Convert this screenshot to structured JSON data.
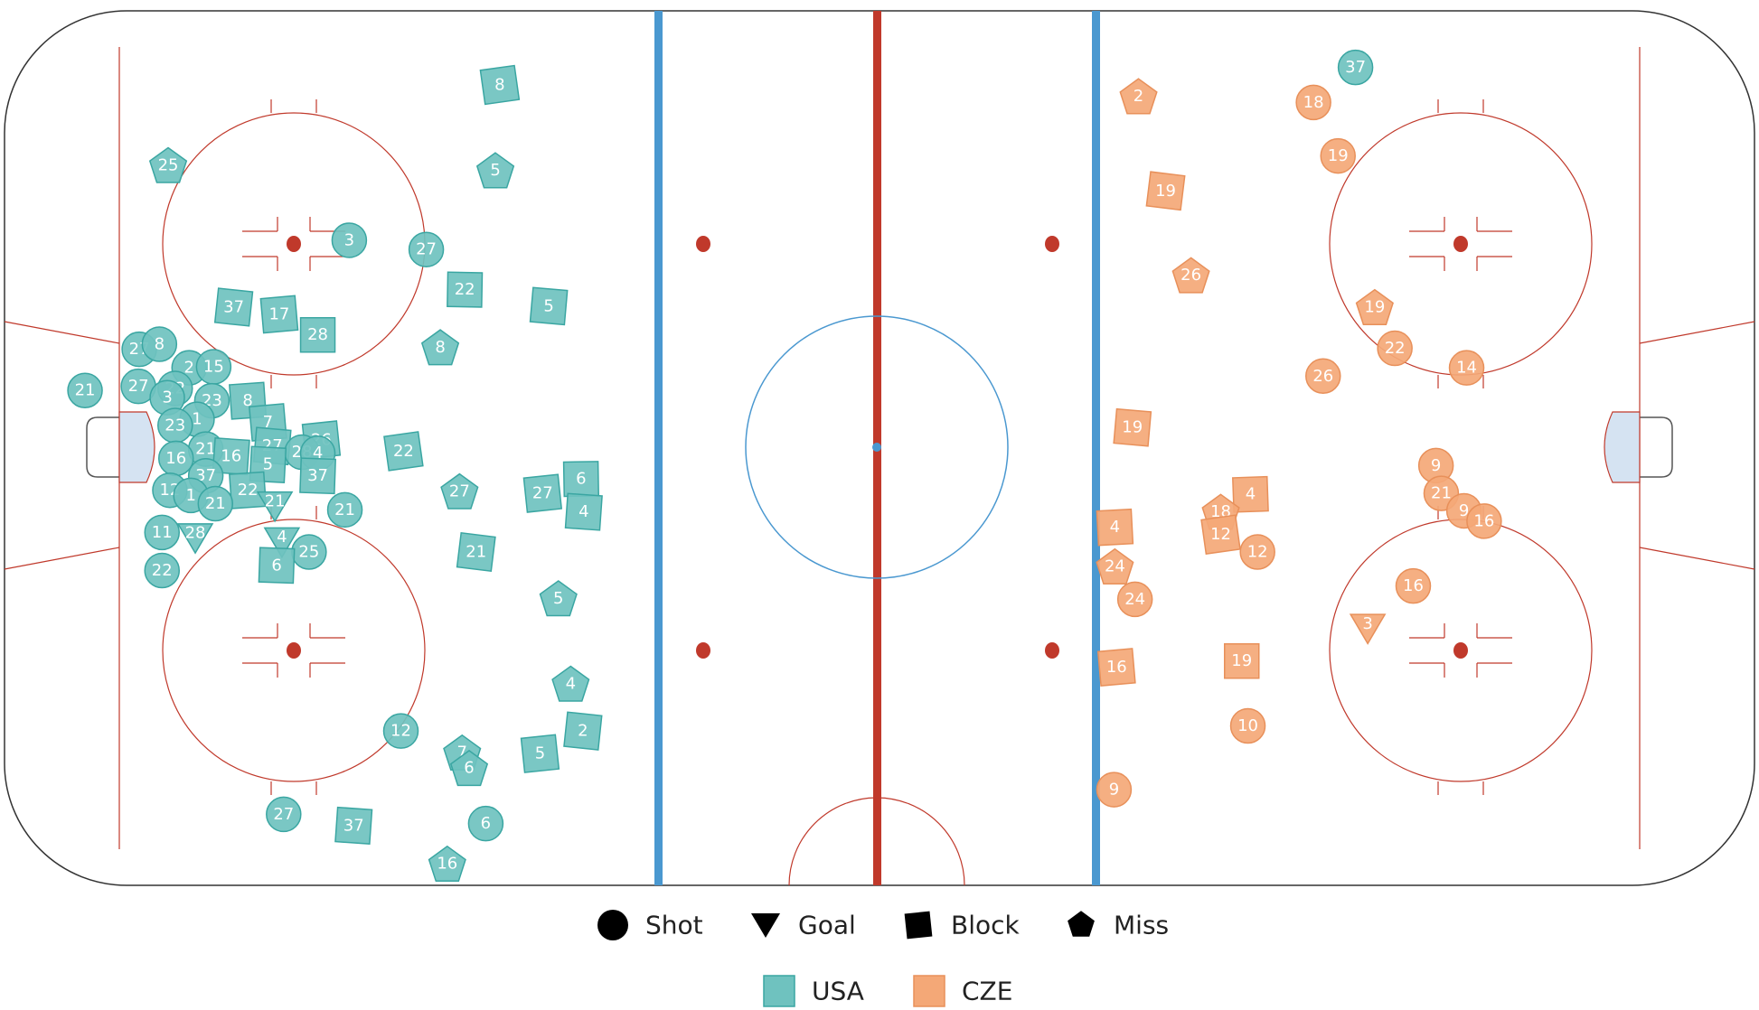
{
  "colors": {
    "USA": "#6fc2bf",
    "CZE": "#f4a877",
    "USA_stroke": "#3aa6a2",
    "CZE_stroke": "#e8905a",
    "red_line": "#c0392b",
    "blue_line": "#4a98d0",
    "center_circle": "#4a98d0",
    "faceoff": "#c0392b",
    "crease": "#d5e3f2"
  },
  "legend": {
    "types": [
      {
        "label": "Shot",
        "shape": "circle"
      },
      {
        "label": "Goal",
        "shape": "triangle"
      },
      {
        "label": "Block",
        "shape": "square"
      },
      {
        "label": "Miss",
        "shape": "pentagon"
      }
    ],
    "teams": [
      {
        "label": "USA",
        "color": "#6fc2bf"
      },
      {
        "label": "CZE",
        "color": "#f4a877"
      }
    ]
  },
  "chart_data": {
    "type": "scatter",
    "x_range": [
      -100,
      100
    ],
    "y_range": [
      -42.5,
      42.5
    ],
    "events": [
      {
        "team": "USA",
        "type": "block",
        "num": "8",
        "x": -43.4,
        "y": 35.3
      },
      {
        "team": "USA",
        "type": "miss",
        "num": "25",
        "x": -81.3,
        "y": 27.5
      },
      {
        "team": "USA",
        "type": "miss",
        "num": "5",
        "x": -43.9,
        "y": 27.0
      },
      {
        "team": "USA",
        "type": "shot",
        "num": "3",
        "x": -60.6,
        "y": 20.2
      },
      {
        "team": "USA",
        "type": "shot",
        "num": "27",
        "x": -51.8,
        "y": 19.3
      },
      {
        "team": "USA",
        "type": "block",
        "num": "22",
        "x": -47.4,
        "y": 15.4
      },
      {
        "team": "USA",
        "type": "block",
        "num": "37",
        "x": -73.8,
        "y": 13.7
      },
      {
        "team": "USA",
        "type": "block",
        "num": "17",
        "x": -68.6,
        "y": 13.0
      },
      {
        "team": "USA",
        "type": "block",
        "num": "28",
        "x": -64.2,
        "y": 11.0
      },
      {
        "team": "USA",
        "type": "block",
        "num": "5",
        "x": -37.8,
        "y": 13.8
      },
      {
        "team": "USA",
        "type": "miss",
        "num": "8",
        "x": -50.2,
        "y": 9.8
      },
      {
        "team": "USA",
        "type": "shot",
        "num": "27",
        "x": -84.6,
        "y": 9.6
      },
      {
        "team": "USA",
        "type": "shot",
        "num": "8",
        "x": -82.3,
        "y": 10.1
      },
      {
        "team": "USA",
        "type": "shot",
        "num": "21",
        "x": -90.8,
        "y": 5.6
      },
      {
        "team": "USA",
        "type": "shot",
        "num": "27",
        "x": -84.7,
        "y": 6.0
      },
      {
        "team": "USA",
        "type": "shot",
        "num": "2",
        "x": -78.9,
        "y": 7.8
      },
      {
        "team": "USA",
        "type": "shot",
        "num": "15",
        "x": -76.1,
        "y": 7.9
      },
      {
        "team": "USA",
        "type": "shot",
        "num": "22",
        "x": -80.5,
        "y": 5.8
      },
      {
        "team": "USA",
        "type": "shot",
        "num": "3",
        "x": -81.4,
        "y": 4.9
      },
      {
        "team": "USA",
        "type": "shot",
        "num": "23",
        "x": -76.3,
        "y": 4.6
      },
      {
        "team": "USA",
        "type": "block",
        "num": "8",
        "x": -72.2,
        "y": 4.6
      },
      {
        "team": "USA",
        "type": "shot",
        "num": "1",
        "x": -78.0,
        "y": 2.8
      },
      {
        "team": "USA",
        "type": "shot",
        "num": "23",
        "x": -80.5,
        "y": 2.2
      },
      {
        "team": "USA",
        "type": "block",
        "num": "7",
        "x": -69.9,
        "y": 2.5
      },
      {
        "team": "USA",
        "type": "shot",
        "num": "21",
        "x": -77.0,
        "y": -0.1
      },
      {
        "team": "USA",
        "type": "block",
        "num": "27",
        "x": -69.4,
        "y": 0.2
      },
      {
        "team": "USA",
        "type": "block",
        "num": "26",
        "x": -63.8,
        "y": 0.8
      },
      {
        "team": "USA",
        "type": "shot",
        "num": "16",
        "x": -80.4,
        "y": -1.0
      },
      {
        "team": "USA",
        "type": "block",
        "num": "16",
        "x": -74.1,
        "y": -0.8
      },
      {
        "team": "USA",
        "type": "shot",
        "num": "28",
        "x": -66.0,
        "y": -0.4
      },
      {
        "team": "USA",
        "type": "shot",
        "num": "4",
        "x": -64.2,
        "y": -0.5
      },
      {
        "team": "USA",
        "type": "block",
        "num": "5",
        "x": -69.9,
        "y": -1.6
      },
      {
        "team": "USA",
        "type": "block",
        "num": "22",
        "x": -54.4,
        "y": -0.3
      },
      {
        "team": "USA",
        "type": "shot",
        "num": "37",
        "x": -77.0,
        "y": -2.7
      },
      {
        "team": "USA",
        "type": "block",
        "num": "37",
        "x": -64.2,
        "y": -2.7
      },
      {
        "team": "USA",
        "type": "shot",
        "num": "12",
        "x": -81.1,
        "y": -4.1
      },
      {
        "team": "USA",
        "type": "block",
        "num": "22",
        "x": -72.2,
        "y": -4.1
      },
      {
        "team": "USA",
        "type": "shot",
        "num": "1",
        "x": -78.7,
        "y": -4.6
      },
      {
        "team": "USA",
        "type": "shot",
        "num": "21",
        "x": -75.9,
        "y": -5.4
      },
      {
        "team": "USA",
        "type": "goal",
        "num": "21",
        "x": -69.1,
        "y": -5.6
      },
      {
        "team": "USA",
        "type": "shot",
        "num": "21",
        "x": -61.1,
        "y": -6.0
      },
      {
        "team": "USA",
        "type": "miss",
        "num": "27",
        "x": -48.0,
        "y": -4.2
      },
      {
        "team": "USA",
        "type": "block",
        "num": "27",
        "x": -38.5,
        "y": -4.4
      },
      {
        "team": "USA",
        "type": "block",
        "num": "6",
        "x": -34.1,
        "y": -3.0
      },
      {
        "team": "USA",
        "type": "block",
        "num": "4",
        "x": -33.8,
        "y": -6.2
      },
      {
        "team": "USA",
        "type": "shot",
        "num": "11",
        "x": -82.0,
        "y": -8.2
      },
      {
        "team": "USA",
        "type": "goal",
        "num": "28",
        "x": -78.2,
        "y": -8.7
      },
      {
        "team": "USA",
        "type": "shot",
        "num": "22",
        "x": -82.0,
        "y": -11.9
      },
      {
        "team": "USA",
        "type": "goal",
        "num": "4",
        "x": -68.3,
        "y": -9.1
      },
      {
        "team": "USA",
        "type": "shot",
        "num": "25",
        "x": -65.2,
        "y": -10.1
      },
      {
        "team": "USA",
        "type": "block",
        "num": "6",
        "x": -68.9,
        "y": -11.4
      },
      {
        "team": "USA",
        "type": "block",
        "num": "21",
        "x": -46.1,
        "y": -10.1
      },
      {
        "team": "USA",
        "type": "miss",
        "num": "5",
        "x": -36.7,
        "y": -14.6
      },
      {
        "team": "USA",
        "type": "miss",
        "num": "4",
        "x": -35.3,
        "y": -22.9
      },
      {
        "team": "USA",
        "type": "block",
        "num": "2",
        "x": -33.9,
        "y": -27.5
      },
      {
        "team": "USA",
        "type": "shot",
        "num": "12",
        "x": -54.7,
        "y": -27.5
      },
      {
        "team": "USA",
        "type": "miss",
        "num": "7",
        "x": -47.7,
        "y": -29.6
      },
      {
        "team": "USA",
        "type": "miss",
        "num": "6",
        "x": -46.9,
        "y": -31.1
      },
      {
        "team": "USA",
        "type": "block",
        "num": "5",
        "x": -38.8,
        "y": -29.7
      },
      {
        "team": "USA",
        "type": "shot",
        "num": "27",
        "x": -68.1,
        "y": -35.6
      },
      {
        "team": "USA",
        "type": "block",
        "num": "37",
        "x": -60.1,
        "y": -36.7
      },
      {
        "team": "USA",
        "type": "shot",
        "num": "6",
        "x": -45.0,
        "y": -36.5
      },
      {
        "team": "USA",
        "type": "miss",
        "num": "16",
        "x": -49.4,
        "y": -40.4
      },
      {
        "team": "USA",
        "type": "shot",
        "num": "37",
        "x": 54.4,
        "y": 37.0
      },
      {
        "team": "CZE",
        "type": "miss",
        "num": "2",
        "x": 29.6,
        "y": 34.2
      },
      {
        "team": "CZE",
        "type": "shot",
        "num": "18",
        "x": 49.6,
        "y": 33.6
      },
      {
        "team": "CZE",
        "type": "shot",
        "num": "19",
        "x": 52.4,
        "y": 28.4
      },
      {
        "team": "CZE",
        "type": "block",
        "num": "19",
        "x": 32.7,
        "y": 25.0
      },
      {
        "team": "CZE",
        "type": "miss",
        "num": "26",
        "x": 35.6,
        "y": 16.8
      },
      {
        "team": "CZE",
        "type": "miss",
        "num": "19",
        "x": 56.6,
        "y": 13.7
      },
      {
        "team": "CZE",
        "type": "shot",
        "num": "22",
        "x": 58.9,
        "y": 9.7
      },
      {
        "team": "CZE",
        "type": "shot",
        "num": "26",
        "x": 50.7,
        "y": 7.0
      },
      {
        "team": "CZE",
        "type": "shot",
        "num": "14",
        "x": 67.1,
        "y": 7.8
      },
      {
        "team": "CZE",
        "type": "block",
        "num": "19",
        "x": 28.9,
        "y": 2.0
      },
      {
        "team": "CZE",
        "type": "shot",
        "num": "9",
        "x": 63.6,
        "y": -1.7
      },
      {
        "team": "CZE",
        "type": "shot",
        "num": "21",
        "x": 64.2,
        "y": -4.4
      },
      {
        "team": "CZE",
        "type": "shot",
        "num": "9",
        "x": 66.8,
        "y": -6.1
      },
      {
        "team": "CZE",
        "type": "shot",
        "num": "16",
        "x": 69.1,
        "y": -7.1
      },
      {
        "team": "CZE",
        "type": "block",
        "num": "4",
        "x": 42.4,
        "y": -4.5
      },
      {
        "team": "CZE",
        "type": "miss",
        "num": "18",
        "x": 39.0,
        "y": -6.2
      },
      {
        "team": "CZE",
        "type": "block",
        "num": "12",
        "x": 39.0,
        "y": -8.4
      },
      {
        "team": "CZE",
        "type": "block",
        "num": "4",
        "x": 26.9,
        "y": -7.7
      },
      {
        "team": "CZE",
        "type": "shot",
        "num": "12",
        "x": 43.2,
        "y": -10.1
      },
      {
        "team": "CZE",
        "type": "miss",
        "num": "24",
        "x": 26.9,
        "y": -11.5
      },
      {
        "team": "CZE",
        "type": "shot",
        "num": "24",
        "x": 29.2,
        "y": -14.7
      },
      {
        "team": "CZE",
        "type": "shot",
        "num": "16",
        "x": 61.0,
        "y": -13.4
      },
      {
        "team": "CZE",
        "type": "goal",
        "num": "3",
        "x": 55.8,
        "y": -17.5
      },
      {
        "team": "CZE",
        "type": "block",
        "num": "16",
        "x": 27.1,
        "y": -21.3
      },
      {
        "team": "CZE",
        "type": "block",
        "num": "19",
        "x": 41.4,
        "y": -20.7
      },
      {
        "team": "CZE",
        "type": "shot",
        "num": "10",
        "x": 42.1,
        "y": -27.0
      },
      {
        "team": "CZE",
        "type": "shot",
        "num": "9",
        "x": 26.8,
        "y": -33.2
      }
    ]
  }
}
